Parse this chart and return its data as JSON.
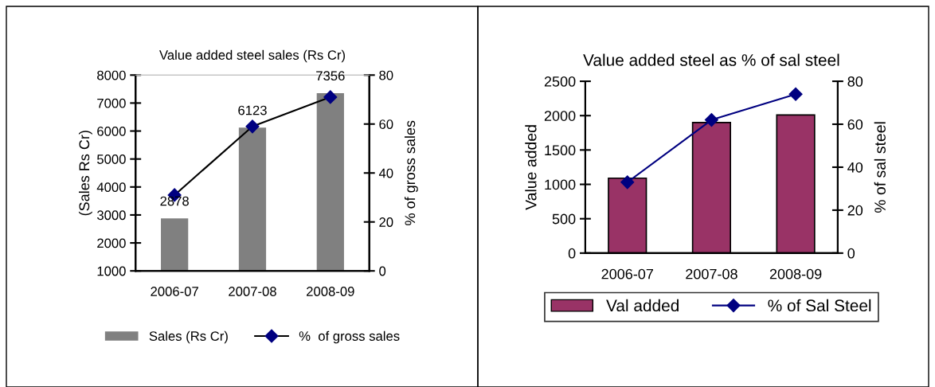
{
  "chart_data": [
    {
      "type": "bar",
      "title": "Value added steel sales (Rs Cr)",
      "ylabel": "(Sales Rs Cr)",
      "y2label": "% of gross sales",
      "categories": [
        "2006-07",
        "2007-08",
        "2008-09"
      ],
      "series": [
        {
          "name": "Sales (Rs Cr)",
          "color": "#808080",
          "values": [
            2878,
            6123,
            7356
          ],
          "value_labels": [
            "2878",
            "6123",
            "7356"
          ]
        },
        {
          "name": "%  of gross sales",
          "type": "line",
          "axis": "y2",
          "color": "#000000",
          "marker": "diamond",
          "values": [
            31,
            59,
            71
          ]
        }
      ],
      "ylim": [
        1000,
        8000
      ],
      "yticks": [
        1000,
        2000,
        3000,
        4000,
        5000,
        6000,
        7000,
        8000
      ],
      "y2lim": [
        0,
        80
      ],
      "y2ticks": [
        0,
        20,
        40,
        60,
        80
      ],
      "legend": "bottom"
    },
    {
      "type": "bar",
      "title": "Value added steel as % of sal steel",
      "ylabel": "Value added",
      "y2label": "% of sal steel",
      "categories": [
        "2006-07",
        "2007-08",
        "2008-09"
      ],
      "series": [
        {
          "name": "Val added",
          "color": "#993366",
          "values": [
            1090,
            1900,
            2010
          ]
        },
        {
          "name": "% of Sal Steel",
          "type": "line",
          "axis": "y2",
          "color": "#000080",
          "marker": "diamond",
          "values": [
            33,
            62,
            74
          ]
        }
      ],
      "ylim": [
        0,
        2500
      ],
      "yticks": [
        0,
        500,
        1000,
        1500,
        2000,
        2500
      ],
      "y2lim": [
        0,
        80
      ],
      "y2ticks": [
        0,
        20,
        40,
        60,
        80
      ],
      "legend": "bottom"
    }
  ]
}
